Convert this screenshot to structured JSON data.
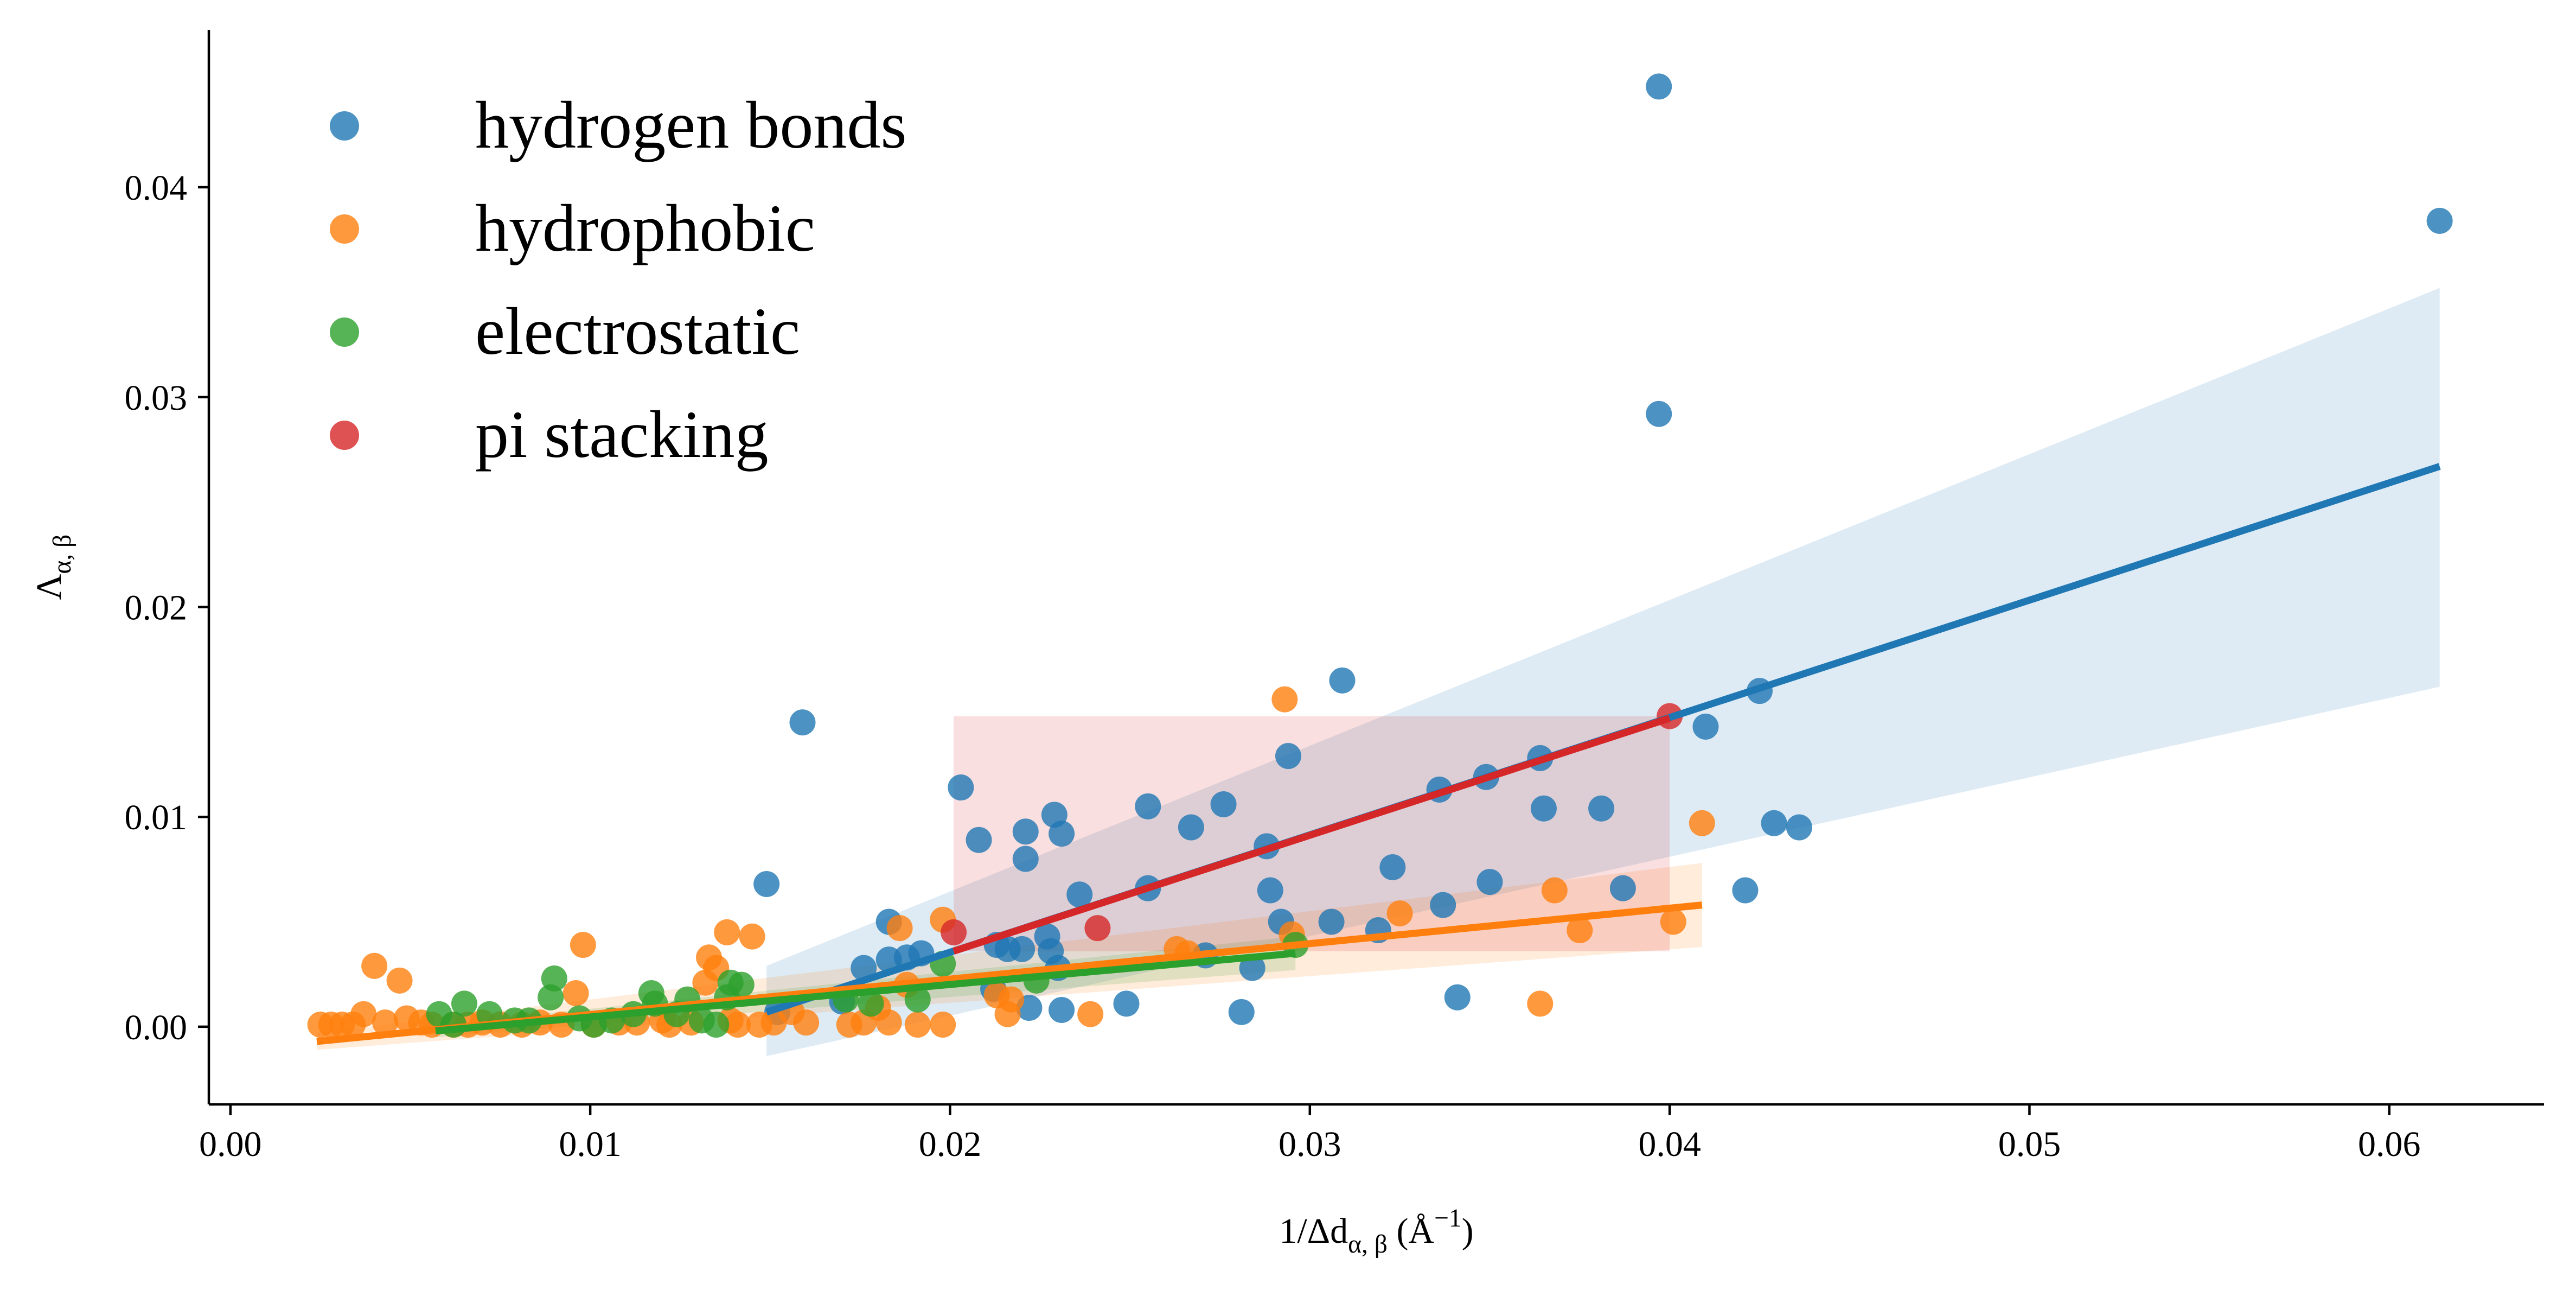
{
  "chart_data": {
    "type": "scatter",
    "title": "",
    "xlabel": "1/Δd_{α,β} (Å^{-1})",
    "ylabel": "Λ_{α,β}",
    "xlim": [
      -0.0006,
      0.0643
    ],
    "ylim": [
      -0.0037,
      0.0475
    ],
    "x_ticks": [
      0.0,
      0.01,
      0.02,
      0.03,
      0.04,
      0.05,
      0.06
    ],
    "x_tick_labels": [
      "0.00",
      "0.01",
      "0.02",
      "0.03",
      "0.04",
      "0.05",
      "0.06"
    ],
    "y_ticks": [
      0.0,
      0.01,
      0.02,
      0.03,
      0.04
    ],
    "y_tick_labels": [
      "0.00",
      "0.01",
      "0.02",
      "0.03",
      "0.04"
    ],
    "grid": false,
    "legend_position": "top-left",
    "series": [
      {
        "name": "hydrogen bonds",
        "color": "#1f77b4",
        "points": [
          [
            0.0397,
            0.0448
          ],
          [
            0.0614,
            0.0384
          ],
          [
            0.0397,
            0.0292
          ],
          [
            0.0309,
            0.0165
          ],
          [
            0.0159,
            0.0145
          ],
          [
            0.0425,
            0.016
          ],
          [
            0.041,
            0.0143
          ],
          [
            0.0294,
            0.0129
          ],
          [
            0.0364,
            0.0128
          ],
          [
            0.0349,
            0.0119
          ],
          [
            0.0336,
            0.0113
          ],
          [
            0.0203,
            0.0114
          ],
          [
            0.0255,
            0.0105
          ],
          [
            0.0276,
            0.0106
          ],
          [
            0.0365,
            0.0104
          ],
          [
            0.0381,
            0.0104
          ],
          [
            0.0229,
            0.0101
          ],
          [
            0.0429,
            0.0097
          ],
          [
            0.0436,
            0.0095
          ],
          [
            0.0267,
            0.0095
          ],
          [
            0.0221,
            0.0093
          ],
          [
            0.0231,
            0.0092
          ],
          [
            0.0208,
            0.0089
          ],
          [
            0.0288,
            0.0086
          ],
          [
            0.0221,
            0.008
          ],
          [
            0.0323,
            0.0076
          ],
          [
            0.0149,
            0.0068
          ],
          [
            0.035,
            0.0069
          ],
          [
            0.0387,
            0.0066
          ],
          [
            0.0421,
            0.0065
          ],
          [
            0.0255,
            0.0066
          ],
          [
            0.0289,
            0.0065
          ],
          [
            0.0236,
            0.0063
          ],
          [
            0.0337,
            0.0058
          ],
          [
            0.0183,
            0.005
          ],
          [
            0.0292,
            0.005
          ],
          [
            0.0306,
            0.005
          ],
          [
            0.0319,
            0.0046
          ],
          [
            0.0227,
            0.0043
          ],
          [
            0.0213,
            0.0039
          ],
          [
            0.022,
            0.0037
          ],
          [
            0.0216,
            0.0037
          ],
          [
            0.0228,
            0.0036
          ],
          [
            0.0271,
            0.0034
          ],
          [
            0.0192,
            0.0035
          ],
          [
            0.0188,
            0.0033
          ],
          [
            0.0183,
            0.0032
          ],
          [
            0.0176,
            0.0028
          ],
          [
            0.023,
            0.0028
          ],
          [
            0.0284,
            0.0028
          ],
          [
            0.0212,
            0.0018
          ],
          [
            0.0341,
            0.0014
          ],
          [
            0.0249,
            0.0011
          ],
          [
            0.0222,
            0.0009
          ],
          [
            0.0231,
            0.0008
          ],
          [
            0.0281,
            0.0007
          ],
          [
            0.017,
            0.0012
          ],
          [
            0.0152,
            0.0007
          ]
        ],
        "regression": {
          "x": [
            0.0149,
            0.0614
          ],
          "y": [
            0.0007,
            0.0267
          ]
        },
        "ci_band": {
          "x": [
            0.0149,
            0.0614
          ],
          "lower": [
            -0.0014,
            0.0162
          ],
          "upper": [
            0.0029,
            0.0352
          ]
        }
      },
      {
        "name": "hydrophobic",
        "color": "#ff7f0e",
        "points": [
          [
            0.0293,
            0.0156
          ],
          [
            0.0409,
            0.0097
          ],
          [
            0.0368,
            0.0065
          ],
          [
            0.0325,
            0.0054
          ],
          [
            0.0198,
            0.0051
          ],
          [
            0.0401,
            0.005
          ],
          [
            0.0186,
            0.0047
          ],
          [
            0.0375,
            0.0046
          ],
          [
            0.0138,
            0.0045
          ],
          [
            0.0145,
            0.0043
          ],
          [
            0.0098,
            0.0039
          ],
          [
            0.0263,
            0.0037
          ],
          [
            0.0295,
            0.0044
          ],
          [
            0.0266,
            0.0035
          ],
          [
            0.0133,
            0.0033
          ],
          [
            0.004,
            0.0029
          ],
          [
            0.0135,
            0.0028
          ],
          [
            0.0047,
            0.0022
          ],
          [
            0.0213,
            0.0015
          ],
          [
            0.0217,
            0.0013
          ],
          [
            0.0364,
            0.0011
          ],
          [
            0.0239,
            0.0006
          ],
          [
            0.0216,
            0.0006
          ],
          [
            0.0096,
            0.0016
          ],
          [
            0.0132,
            0.0021
          ],
          [
            0.0188,
            0.002
          ],
          [
            0.018,
            0.0009
          ],
          [
            0.0156,
            0.0007
          ],
          [
            0.0151,
            0.0002
          ],
          [
            0.016,
            0.0002
          ],
          [
            0.0176,
            0.0002
          ],
          [
            0.0183,
            0.0002
          ],
          [
            0.0198,
            0.0001
          ],
          [
            0.0139,
            0.0003
          ],
          [
            0.012,
            0.0003
          ],
          [
            0.0108,
            0.0002
          ],
          [
            0.0086,
            0.0002
          ],
          [
            0.0075,
            0.0001
          ],
          [
            0.0066,
            0.0001
          ],
          [
            0.0056,
            0.0001
          ],
          [
            0.0049,
            0.0004
          ],
          [
            0.0037,
            0.0006
          ],
          [
            0.0031,
            0.0001
          ],
          [
            0.0025,
            0.0001
          ],
          [
            0.0028,
            0.0001
          ],
          [
            0.0034,
            0.0001
          ],
          [
            0.0043,
            0.0002
          ],
          [
            0.0053,
            0.0002
          ],
          [
            0.0062,
            0.0001
          ],
          [
            0.007,
            0.0002
          ],
          [
            0.0081,
            0.0001
          ],
          [
            0.0092,
            0.0001
          ],
          [
            0.0101,
            0.0001
          ],
          [
            0.0113,
            0.0002
          ],
          [
            0.0122,
            0.0001
          ],
          [
            0.0128,
            0.0002
          ],
          [
            0.0141,
            0.0001
          ],
          [
            0.0147,
            0.0001
          ],
          [
            0.0172,
            0.0001
          ],
          [
            0.0191,
            0.0001
          ]
        ],
        "regression": {
          "x": [
            0.0024,
            0.0409
          ],
          "y": [
            -0.0007,
            0.0058
          ]
        },
        "ci_band": {
          "x": [
            0.0024,
            0.0409
          ],
          "lower": [
            -0.0011,
            0.0038
          ],
          "upper": [
            -0.0003,
            0.0078
          ]
        }
      },
      {
        "name": "electrostatic",
        "color": "#2ca02c",
        "points": [
          [
            0.009,
            0.0023
          ],
          [
            0.0139,
            0.0021
          ],
          [
            0.0142,
            0.002
          ],
          [
            0.0117,
            0.0016
          ],
          [
            0.0089,
            0.0014
          ],
          [
            0.0138,
            0.0014
          ],
          [
            0.0127,
            0.0013
          ],
          [
            0.0065,
            0.0011
          ],
          [
            0.0118,
            0.0011
          ],
          [
            0.0191,
            0.0013
          ],
          [
            0.0198,
            0.003
          ],
          [
            0.0296,
            0.0039
          ],
          [
            0.0224,
            0.0022
          ],
          [
            0.0058,
            0.0006
          ],
          [
            0.0072,
            0.0006
          ],
          [
            0.0079,
            0.0003
          ],
          [
            0.0083,
            0.0003
          ],
          [
            0.0097,
            0.0004
          ],
          [
            0.0106,
            0.0003
          ],
          [
            0.0112,
            0.0006
          ],
          [
            0.0124,
            0.0006
          ],
          [
            0.0131,
            0.0003
          ],
          [
            0.0135,
            0.0001
          ],
          [
            0.0062,
            0.0001
          ],
          [
            0.0101,
            0.0001
          ],
          [
            0.0178,
            0.0011
          ],
          [
            0.0171,
            0.0013
          ]
        ],
        "regression": {
          "x": [
            0.0057,
            0.0296
          ],
          "y": [
            -0.0002,
            0.0035
          ]
        },
        "ci_band": {
          "x": [
            0.0057,
            0.0296
          ],
          "lower": [
            -0.0005,
            0.0027
          ],
          "upper": [
            0.0001,
            0.0043
          ]
        }
      },
      {
        "name": "pi stacking",
        "color": "#d62728",
        "points": [
          [
            0.0201,
            0.0045
          ],
          [
            0.0241,
            0.0047
          ],
          [
            0.04,
            0.0148
          ]
        ],
        "regression": {
          "x": [
            0.0201,
            0.04
          ],
          "y": [
            0.0036,
            0.0147
          ]
        },
        "ci_band": {
          "x": [
            0.0201,
            0.04
          ],
          "lower": [
            0.0036,
            0.0036
          ],
          "upper": [
            0.0148,
            0.0148
          ]
        }
      }
    ]
  }
}
